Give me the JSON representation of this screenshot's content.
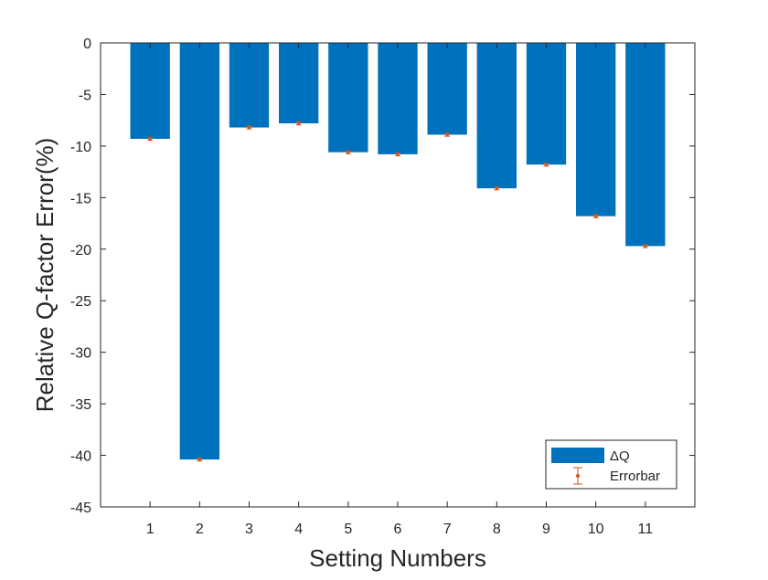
{
  "chart_data": {
    "type": "bar",
    "xlabel": "Setting Numbers",
    "ylabel": "Relative Q-factor Error(%)",
    "categories": [
      "1",
      "2",
      "3",
      "4",
      "5",
      "6",
      "7",
      "8",
      "9",
      "10",
      "11"
    ],
    "values": [
      -9.3,
      -40.4,
      -8.2,
      -7.8,
      -10.6,
      -10.8,
      -8.9,
      -14.1,
      -11.8,
      -16.8,
      -19.7
    ],
    "errors": [
      0.15,
      0.15,
      0.15,
      0.15,
      0.15,
      0.15,
      0.15,
      0.15,
      0.15,
      0.15,
      0.15
    ],
    "ylim": [
      -45,
      0
    ],
    "yticks": [
      0,
      -5,
      -10,
      -15,
      -20,
      -25,
      -30,
      -35,
      -40,
      -45
    ],
    "ytick_labels": [
      "0",
      "-5",
      "-10",
      "-15",
      "-20",
      "-25",
      "-30",
      "-35",
      "-40",
      "-45"
    ],
    "grid": false,
    "legend_position": "bottom-right",
    "series": [
      {
        "name": "ΔQ",
        "kind": "bar",
        "color": "#0072BD"
      },
      {
        "name": "Errorbar",
        "kind": "errorbar",
        "color": "#D95319"
      }
    ]
  }
}
